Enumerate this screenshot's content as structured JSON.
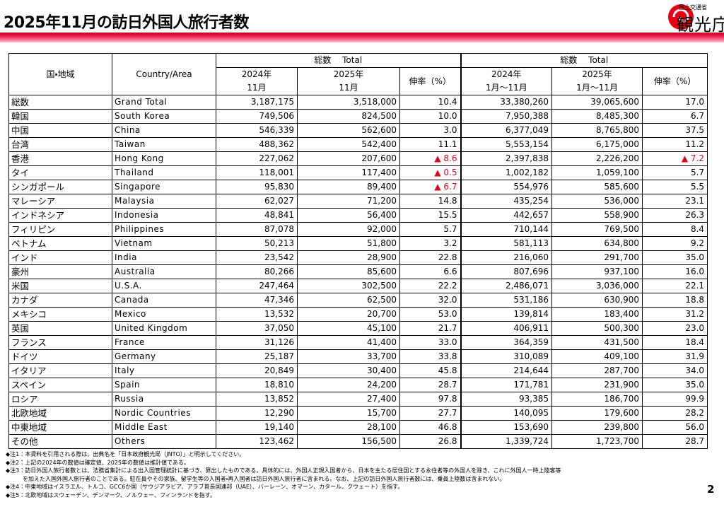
{
  "header": {
    "title": "2025年11月の訪日外国人旅行者数",
    "logo_small": "国土交通省",
    "logo_main": "観光庁"
  },
  "table": {
    "head": {
      "area_jp": "国・地域",
      "area_en": "Country/Area",
      "month_total": "総数　 Total",
      "m2024_year": "2024年",
      "m2024_month": "11月",
      "m2025_year": "2025年",
      "m2025_month": "11月",
      "m_rate": "伸率（%）",
      "ytd_total": "総数　 Total",
      "y2024_year": "2024年",
      "y2024_range": "1月～11月",
      "y2025_year": "2025年",
      "y2025_range": "1月～11月",
      "y_rate": "伸率（%）"
    },
    "rows": [
      [
        "総数",
        "Grand Total",
        "3,187,175",
        "3,518,000",
        "10.4",
        "33,380,260",
        "39,065,600",
        "17.0"
      ],
      [
        "韓国",
        "South Korea",
        "749,506",
        "824,500",
        "10.0",
        "7,950,388",
        "8,485,300",
        "6.7"
      ],
      [
        "中国",
        "China",
        "546,339",
        "562,600",
        "3.0",
        "6,377,049",
        "8,765,800",
        "37.5"
      ],
      [
        "台湾",
        "Taiwan",
        "488,362",
        "542,400",
        "11.1",
        "5,553,154",
        "6,175,000",
        "11.2"
      ],
      [
        "香港",
        "Hong Kong",
        "227,062",
        "207,600",
        "▲ 8.6",
        "2,397,838",
        "2,226,200",
        "▲ 7.2"
      ],
      [
        "タイ",
        "Thailand",
        "118,001",
        "117,400",
        "▲ 0.5",
        "1,002,182",
        "1,059,100",
        "5.7"
      ],
      [
        "シンガポール",
        "Singapore",
        "95,830",
        "89,400",
        "▲ 6.7",
        "554,976",
        "585,600",
        "5.5"
      ],
      [
        "マレーシア",
        "Malaysia",
        "62,027",
        "71,200",
        "14.8",
        "435,254",
        "536,000",
        "23.1"
      ],
      [
        "インドネシア",
        "Indonesia",
        "48,841",
        "56,400",
        "15.5",
        "442,657",
        "558,900",
        "26.3"
      ],
      [
        "フィリピン",
        "Philippines",
        "87,078",
        "92,000",
        "5.7",
        "710,144",
        "769,500",
        "8.4"
      ],
      [
        "ベトナム",
        "Vietnam",
        "50,213",
        "51,800",
        "3.2",
        "581,113",
        "634,800",
        "9.2"
      ],
      [
        "インド",
        "India",
        "23,542",
        "28,900",
        "22.8",
        "216,060",
        "291,700",
        "35.0"
      ],
      [
        "豪州",
        "Australia",
        "80,266",
        "85,600",
        "6.6",
        "807,696",
        "937,100",
        "16.0"
      ],
      [
        "米国",
        "U.S.A.",
        "247,464",
        "302,500",
        "22.2",
        "2,486,071",
        "3,036,000",
        "22.1"
      ],
      [
        "カナダ",
        "Canada",
        "47,346",
        "62,500",
        "32.0",
        "531,186",
        "630,900",
        "18.8"
      ],
      [
        "メキシコ",
        "Mexico",
        "13,532",
        "20,700",
        "53.0",
        "139,814",
        "183,400",
        "31.2"
      ],
      [
        "英国",
        "United Kingdom",
        "37,050",
        "45,100",
        "21.7",
        "406,911",
        "500,300",
        "23.0"
      ],
      [
        "フランス",
        "France",
        "31,126",
        "41,400",
        "33.0",
        "364,359",
        "431,500",
        "18.4"
      ],
      [
        "ドイツ",
        "Germany",
        "25,187",
        "33,700",
        "33.8",
        "310,089",
        "409,100",
        "31.9"
      ],
      [
        "イタリア",
        "Italy",
        "20,849",
        "30,400",
        "45.8",
        "214,644",
        "287,700",
        "34.0"
      ],
      [
        "スペイン",
        "Spain",
        "18,810",
        "24,200",
        "28.7",
        "171,781",
        "231,900",
        "35.0"
      ],
      [
        "ロシア",
        "Russia",
        "13,852",
        "27,400",
        "97.8",
        "93,385",
        "186,700",
        "99.9"
      ],
      [
        "北欧地域",
        "Nordic Countries",
        "12,290",
        "15,700",
        "27.7",
        "140,095",
        "179,600",
        "28.2"
      ],
      [
        "中東地域",
        "Middle East",
        "19,140",
        "28,100",
        "46.8",
        "153,690",
        "239,800",
        "56.0"
      ],
      [
        "その他",
        "Others",
        "123,462",
        "156,500",
        "26.8",
        "1,339,724",
        "1,723,700",
        "28.7"
      ]
    ]
  },
  "notes": [
    "◆注1：本資料を引用される際は、出典名を「日本政府観光局（JNTO）」と明示してください。",
    "◆注2：上記の2024年の数値は確定値、2025年の数値は推計値である。",
    "◆注3：訪日外国人旅行者数とは、法務省集計による出入国管理統計に基づき、算出したものである。具体的には、外国人正規入国者から、日本を主たる居住国とする永住者等の外国人を除き、これに外国人一時上陸客等",
    "　　　を加えた入国外国人旅行者のことである。駐在員やその家族、留学生等の入国者・再入国者は訪日外国人旅行者に含まれる。なお、上記の訪日外国人旅行者数には、乗員上陸数は含まれない。",
    "◆注4：中東地域はイスラエル、トルコ、GCC6か国（サウジアラビア、アラブ首長国連邦（UAE）、バーレーン、オマーン、カタール、クウェート）を指す。",
    "◆注5：北欧地域はスウェーデン、デンマーク、ノルウェー、フィンランドを指す。"
  ],
  "page_number": "2"
}
